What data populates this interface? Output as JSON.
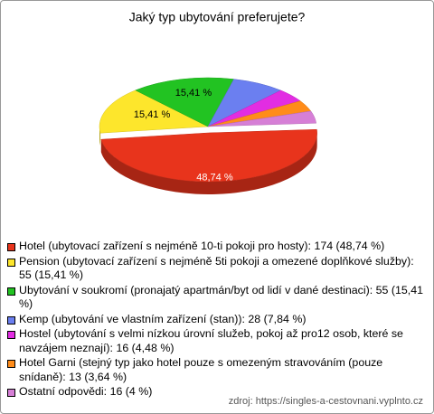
{
  "chart_data": {
    "type": "pie3d",
    "title": "Jaký typ ubytování preferujete?",
    "categories": [
      "Hotel (ubytovací zařízení s nejméně 10-ti pokoji pro hosty): 174 (48,74 %)",
      "Pension (ubytovací zařízení s nejméně 5ti pokoji a omezené doplňkové služby): 55 (15,41 %)",
      "Ubytování v soukromí (pronajatý apartmán/byt od lidí v dané destinaci): 55 (15,41 %)",
      "Kemp (ubytování ve vlastním zařízení (stan)): 28 (7,84 %)",
      "Hostel (ubytování s velmi nízkou úrovní služeb, pokoj až pro12 osob, které se navzájem neznají): 16 (4,48 %)",
      "Hotel Garni (stejný typ jako hotel pouze s omezeným stravováním (pouze snídaně): 13 (3,64 %)",
      "Ostatní odpovědi: 16 (4 %)"
    ],
    "values": [
      48.74,
      15.41,
      15.41,
      7.84,
      4.48,
      3.64,
      4
    ],
    "value_labels": [
      "48,74 %",
      "15,41 %",
      "15,41 %",
      null,
      null,
      null,
      null
    ],
    "colors": [
      "#e8341c",
      "#fde62c",
      "#22c322",
      "#6b7ff0",
      "#e22de2",
      "#ff8c1a",
      "#d67fd6"
    ],
    "source": "zdroj: https://singles-a-cestovnani.vyplnto.cz"
  }
}
